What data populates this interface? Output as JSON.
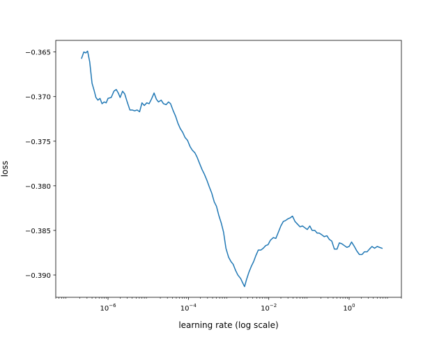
{
  "chart_data": {
    "type": "line",
    "title": "",
    "xlabel": "learning rate (log scale)",
    "ylabel": "loss",
    "xscale": "log",
    "xlim": [
      5e-08,
      20
    ],
    "ylim": [
      -0.3925,
      -0.3637
    ],
    "x_ticks": [
      {
        "value": 1e-06,
        "base": "10",
        "exp": "−6"
      },
      {
        "value": 0.0001,
        "base": "10",
        "exp": "−4"
      },
      {
        "value": 0.01,
        "base": "10",
        "exp": "−2"
      },
      {
        "value": 1,
        "base": "10",
        "exp": "0"
      }
    ],
    "y_ticks": [
      {
        "value": -0.365,
        "label": "−0.365"
      },
      {
        "value": -0.37,
        "label": "−0.370"
      },
      {
        "value": -0.375,
        "label": "−0.375"
      },
      {
        "value": -0.38,
        "label": "−0.380"
      },
      {
        "value": -0.385,
        "label": "−0.385"
      },
      {
        "value": -0.39,
        "label": "−0.390"
      }
    ],
    "grid": false,
    "legend": "none",
    "series": [
      {
        "color": "#1f77b4",
        "points": [
          [
            2.2e-07,
            -0.3657
          ],
          [
            2.5e-07,
            -0.365
          ],
          [
            2.8e-07,
            -0.3651
          ],
          [
            3.1e-07,
            -0.3649
          ],
          [
            3.5e-07,
            -0.3661
          ],
          [
            4e-07,
            -0.3685
          ],
          [
            4.5e-07,
            -0.3693
          ],
          [
            5e-07,
            -0.3701
          ],
          [
            5.6e-07,
            -0.3704
          ],
          [
            6.3e-07,
            -0.3702
          ],
          [
            7.1e-07,
            -0.3708
          ],
          [
            8e-07,
            -0.3706
          ],
          [
            9e-07,
            -0.3707
          ],
          [
            1e-06,
            -0.3702
          ],
          [
            1.2e-06,
            -0.3701
          ],
          [
            1.4e-06,
            -0.3694
          ],
          [
            1.6e-06,
            -0.3692
          ],
          [
            1.8e-06,
            -0.3696
          ],
          [
            2e-06,
            -0.3701
          ],
          [
            2.3e-06,
            -0.3694
          ],
          [
            2.6e-06,
            -0.3697
          ],
          [
            3e-06,
            -0.3706
          ],
          [
            3.5e-06,
            -0.3715
          ],
          [
            4e-06,
            -0.3715
          ],
          [
            4.6e-06,
            -0.3716
          ],
          [
            5.3e-06,
            -0.3715
          ],
          [
            6.1e-06,
            -0.3717
          ],
          [
            7e-06,
            -0.3707
          ],
          [
            8e-06,
            -0.371
          ],
          [
            9.2e-06,
            -0.3707
          ],
          [
            1.05e-05,
            -0.3708
          ],
          [
            1.2e-05,
            -0.3703
          ],
          [
            1.4e-05,
            -0.3696
          ],
          [
            1.6e-05,
            -0.3703
          ],
          [
            1.8e-05,
            -0.3706
          ],
          [
            2.1e-05,
            -0.3704
          ],
          [
            2.4e-05,
            -0.3708
          ],
          [
            2.8e-05,
            -0.3709
          ],
          [
            3.2e-05,
            -0.3706
          ],
          [
            3.6e-05,
            -0.3708
          ],
          [
            4.2e-05,
            -0.3716
          ],
          [
            4.8e-05,
            -0.3722
          ],
          [
            5.5e-05,
            -0.373
          ],
          [
            6.3e-05,
            -0.3736
          ],
          [
            7.2e-05,
            -0.374
          ],
          [
            8.3e-05,
            -0.3746
          ],
          [
            9.5e-05,
            -0.3749
          ],
          [
            0.00011,
            -0.3756
          ],
          [
            0.000125,
            -0.376
          ],
          [
            0.000145,
            -0.3763
          ],
          [
            0.000165,
            -0.3768
          ],
          [
            0.00019,
            -0.3775
          ],
          [
            0.00022,
            -0.3782
          ],
          [
            0.00025,
            -0.3787
          ],
          [
            0.00029,
            -0.3794
          ],
          [
            0.00033,
            -0.3801
          ],
          [
            0.00038,
            -0.3808
          ],
          [
            0.00044,
            -0.3818
          ],
          [
            0.0005,
            -0.3823
          ],
          [
            0.00057,
            -0.3833
          ],
          [
            0.00066,
            -0.3842
          ],
          [
            0.00075,
            -0.3852
          ],
          [
            0.00086,
            -0.387
          ],
          [
            0.001,
            -0.388
          ],
          [
            0.00115,
            -0.3885
          ],
          [
            0.0013,
            -0.3888
          ],
          [
            0.0015,
            -0.3895
          ],
          [
            0.0017,
            -0.39
          ],
          [
            0.002,
            -0.3904
          ],
          [
            0.0022,
            -0.3908
          ],
          [
            0.0025,
            -0.3913
          ],
          [
            0.0028,
            -0.3905
          ],
          [
            0.0032,
            -0.3897
          ],
          [
            0.0037,
            -0.389
          ],
          [
            0.0042,
            -0.3885
          ],
          [
            0.0048,
            -0.3878
          ],
          [
            0.0055,
            -0.3872
          ],
          [
            0.0064,
            -0.3872
          ],
          [
            0.0073,
            -0.387
          ],
          [
            0.0084,
            -0.3867
          ],
          [
            0.0096,
            -0.3866
          ],
          [
            0.011,
            -0.3861
          ],
          [
            0.013,
            -0.3858
          ],
          [
            0.015,
            -0.3859
          ],
          [
            0.017,
            -0.3853
          ],
          [
            0.02,
            -0.3845
          ],
          [
            0.023,
            -0.384
          ],
          [
            0.026,
            -0.3839
          ],
          [
            0.03,
            -0.3837
          ],
          [
            0.034,
            -0.3836
          ],
          [
            0.039,
            -0.3834
          ],
          [
            0.045,
            -0.384
          ],
          [
            0.052,
            -0.3843
          ],
          [
            0.06,
            -0.3846
          ],
          [
            0.069,
            -0.3845
          ],
          [
            0.079,
            -0.3847
          ],
          [
            0.091,
            -0.3849
          ],
          [
            0.105,
            -0.3845
          ],
          [
            0.12,
            -0.385
          ],
          [
            0.14,
            -0.385
          ],
          [
            0.16,
            -0.3853
          ],
          [
            0.18,
            -0.3853
          ],
          [
            0.21,
            -0.3855
          ],
          [
            0.24,
            -0.3857
          ],
          [
            0.28,
            -0.3856
          ],
          [
            0.32,
            -0.386
          ],
          [
            0.37,
            -0.3862
          ],
          [
            0.43,
            -0.3871
          ],
          [
            0.5,
            -0.3871
          ],
          [
            0.57,
            -0.3864
          ],
          [
            0.66,
            -0.3865
          ],
          [
            0.76,
            -0.3867
          ],
          [
            0.88,
            -0.3869
          ],
          [
            1.0,
            -0.3868
          ],
          [
            1.15,
            -0.3863
          ],
          [
            1.35,
            -0.3868
          ],
          [
            1.55,
            -0.3873
          ],
          [
            1.8,
            -0.3877
          ],
          [
            2.1,
            -0.3877
          ],
          [
            2.4,
            -0.3874
          ],
          [
            2.8,
            -0.3874
          ],
          [
            3.2,
            -0.3871
          ],
          [
            3.7,
            -0.3868
          ],
          [
            4.3,
            -0.387
          ],
          [
            5.0,
            -0.3868
          ],
          [
            5.7,
            -0.3869
          ],
          [
            6.6,
            -0.387
          ]
        ]
      }
    ]
  }
}
